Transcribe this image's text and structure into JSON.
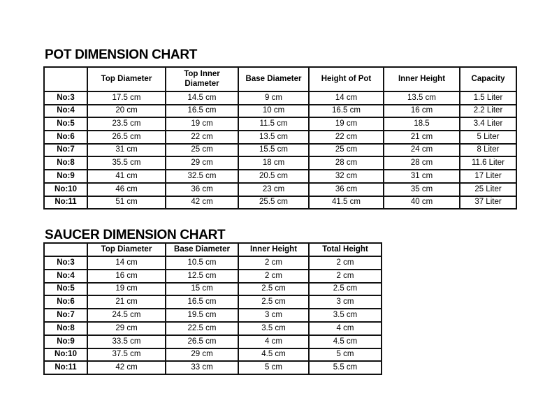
{
  "pot_chart": {
    "title": "POT DIMENSION CHART",
    "headers": [
      "",
      "Top Diameter",
      "Top Inner Diameter",
      "Base Diameter",
      "Height of Pot",
      "Inner Height",
      "Capacity"
    ],
    "rows": [
      [
        "No:3",
        "17.5 cm",
        "14.5 cm",
        "9 cm",
        "14 cm",
        "13.5 cm",
        "1.5 Liter"
      ],
      [
        "No:4",
        "20 cm",
        "16.5 cm",
        "10 cm",
        "16.5 cm",
        "16 cm",
        "2.2 Liter"
      ],
      [
        "No:5",
        "23.5 cm",
        "19 cm",
        "11.5 cm",
        "19 cm",
        "18.5",
        "3.4 Liter"
      ],
      [
        "No:6",
        "26.5 cm",
        "22 cm",
        "13.5 cm",
        "22 cm",
        "21 cm",
        "5 Liter"
      ],
      [
        "No:7",
        "31 cm",
        "25 cm",
        "15.5 cm",
        "25 cm",
        "24 cm",
        "8 Liter"
      ],
      [
        "No:8",
        "35.5 cm",
        "29 cm",
        "18 cm",
        "28 cm",
        "28 cm",
        "11.6 Liter"
      ],
      [
        "No:9",
        "41 cm",
        "32.5 cm",
        "20.5 cm",
        "32 cm",
        "31 cm",
        "17 Liter"
      ],
      [
        "No:10",
        "46 cm",
        "36 cm",
        "23 cm",
        "36 cm",
        "35 cm",
        "25 Liter"
      ],
      [
        "No:11",
        "51 cm",
        "42 cm",
        "25.5 cm",
        "41.5 cm",
        "40 cm",
        "37 Liter"
      ]
    ]
  },
  "saucer_chart": {
    "title": "SAUCER DIMENSION CHART",
    "headers": [
      "",
      "Top Diameter",
      "Base Diameter",
      "Inner Height",
      "Total Height"
    ],
    "rows": [
      [
        "No:3",
        "14 cm",
        "10.5 cm",
        "2 cm",
        "2 cm"
      ],
      [
        "No:4",
        "16 cm",
        "12.5 cm",
        "2 cm",
        "2 cm"
      ],
      [
        "No:5",
        "19 cm",
        "15 cm",
        "2.5 cm",
        "2.5 cm"
      ],
      [
        "No:6",
        "21 cm",
        "16.5 cm",
        "2.5 cm",
        "3 cm"
      ],
      [
        "No:7",
        "24.5 cm",
        "19.5 cm",
        "3 cm",
        "3.5 cm"
      ],
      [
        "No:8",
        "29 cm",
        "22.5 cm",
        "3.5 cm",
        "4 cm"
      ],
      [
        "No:9",
        "33.5 cm",
        "26.5 cm",
        "4 cm",
        "4.5 cm"
      ],
      [
        "No:10",
        "37.5 cm",
        "29 cm",
        "4.5 cm",
        "5 cm"
      ],
      [
        "No:11",
        "42 cm",
        "33 cm",
        "5 cm",
        "5.5 cm"
      ]
    ]
  }
}
